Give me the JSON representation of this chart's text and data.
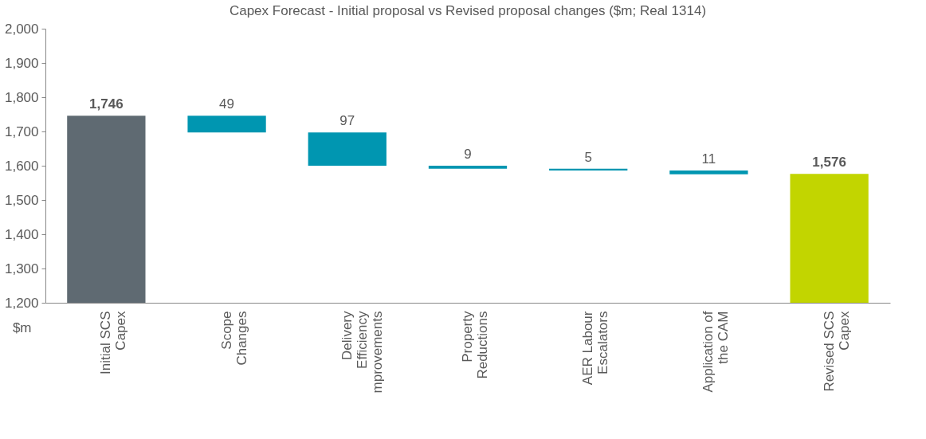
{
  "chart_data": {
    "type": "bar",
    "title": "Capex Forecast - Initial proposal vs Revised proposal changes ($m; Real 1314)",
    "ylabel": "$m",
    "categories": [
      "Initial SCS\nCapex",
      "Scope\nChanges",
      "Delivery\nEfficiency\nmprovements",
      "Property\nReductions",
      "AER Labour\nEscalators",
      "Application of\nthe CAM",
      "Revised SCS\nCapex"
    ],
    "values": [
      1746,
      49,
      97,
      9,
      5,
      11,
      1576
    ],
    "base": [
      null,
      1697,
      1600,
      1591,
      1586,
      1575,
      null
    ],
    "colors": [
      "#5f6a72",
      "#0096b1",
      "#0096b1",
      "#0096b1",
      "#0096b1",
      "#0096b1",
      "#c2d500"
    ],
    "value_labels": [
      "1,746",
      "49",
      "97",
      "9",
      "5",
      "11",
      "1,576"
    ],
    "ylim": [
      1200,
      2000
    ],
    "yticks": [
      {
        "value": 1200,
        "label": "1,200"
      },
      {
        "value": 1300,
        "label": "1,300"
      },
      {
        "value": 1400,
        "label": "1,400"
      },
      {
        "value": 1500,
        "label": "1,500"
      },
      {
        "value": 1600,
        "label": "1,600"
      },
      {
        "value": 1700,
        "label": "1,700"
      },
      {
        "value": 1800,
        "label": "1,800"
      },
      {
        "value": 1900,
        "label": "1,900"
      },
      {
        "value": 2000,
        "label": "2,000"
      }
    ],
    "grid": false
  }
}
